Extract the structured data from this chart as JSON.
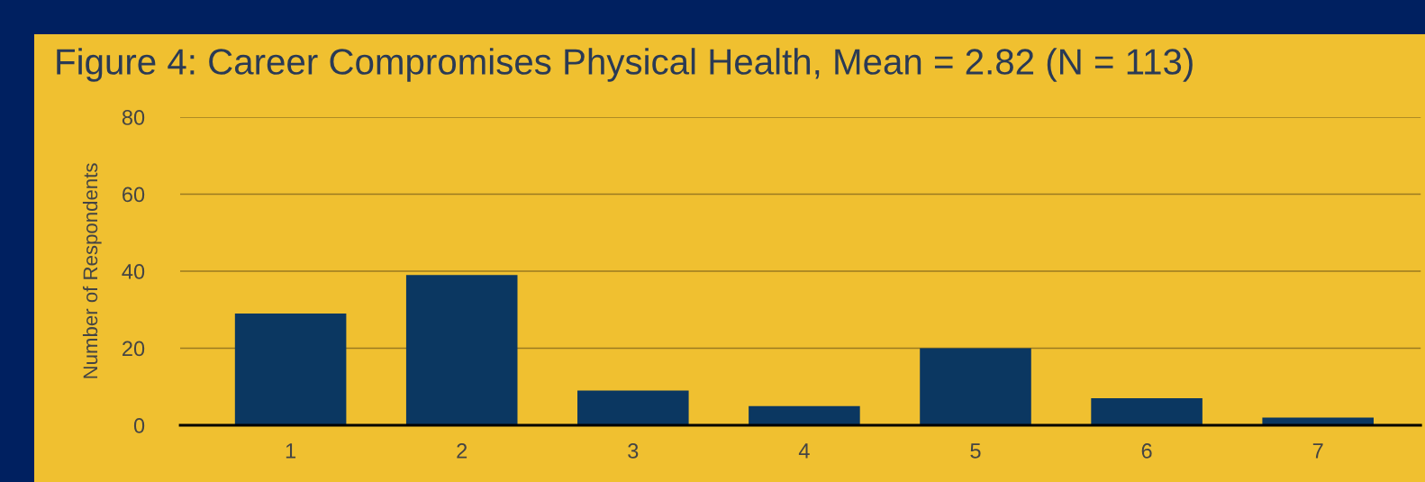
{
  "chart_data": {
    "type": "bar",
    "title": "Figure 4: Career Compromises Physical Health, Mean = 2.82 (N = 113)",
    "ylabel": "Number of Respondents",
    "categories": [
      "1",
      "2",
      "3",
      "4",
      "5",
      "6",
      "7"
    ],
    "values": [
      29,
      39,
      9,
      5,
      20,
      7,
      2
    ],
    "color": "#0b3761",
    "ylim": [
      0,
      80
    ],
    "yticks": [
      0,
      20,
      40,
      60,
      80
    ],
    "grid": "y",
    "legend": false
  }
}
